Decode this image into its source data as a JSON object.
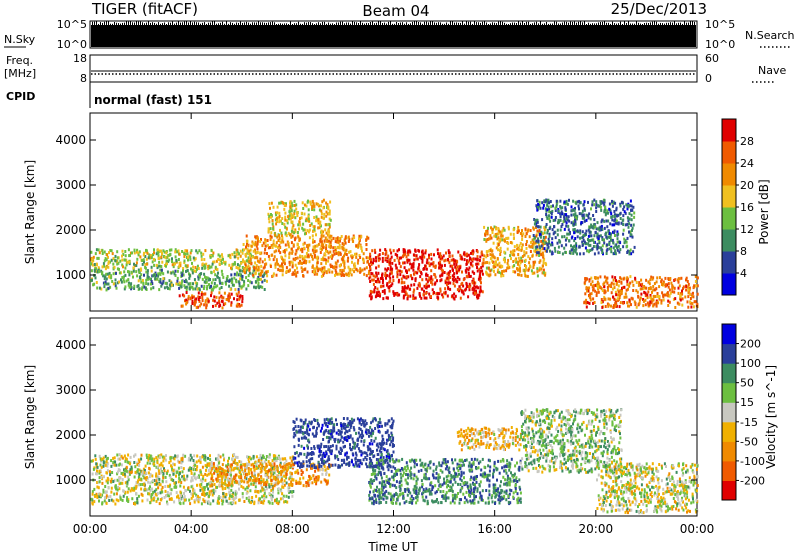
{
  "header": {
    "radar": "TIGER (fitACF)",
    "beam": "Beam 04",
    "date": "25/Dec/2013"
  },
  "strips": {
    "nsky_label": "N.Sky",
    "nsky_ticks": [
      "10^5",
      "10^0"
    ],
    "nsearch_label": "N.Search",
    "nsearch_ticks": [
      "10^5",
      "10^0"
    ],
    "freq_label_line1": "Freq.",
    "freq_label_line2": "[MHz]",
    "freq_ticks": [
      "18",
      "8"
    ],
    "nave_label": "Nave",
    "nave_ticks": [
      "60",
      "0"
    ],
    "cpid_label": "CPID",
    "cpid_text": "normal (fast) 151"
  },
  "colors": {
    "power": [
      "#0000e0",
      "#2a3f9a",
      "#3c8c60",
      "#6cbf40",
      "#f0c020",
      "#f08a00",
      "#f05a00",
      "#e00000"
    ],
    "velocity": [
      "#e00000",
      "#f05a00",
      "#f08a00",
      "#f0b000",
      "#c8c8c0",
      "#6cbf40",
      "#3c8c60",
      "#2a3f9a",
      "#0000e0"
    ]
  },
  "chart_data": [
    {
      "type": "heatmap",
      "title": "",
      "xlabel": "Time UT",
      "ylabel": "Slant Range [km]",
      "x_ticks": [
        "00:00",
        "04:00",
        "08:00",
        "12:00",
        "16:00",
        "20:00",
        "00:00"
      ],
      "x_range_hours": [
        0,
        24
      ],
      "y_ticks": [
        1000,
        2000,
        3000,
        4000
      ],
      "ylim": [
        200,
        4600
      ],
      "colorbar": {
        "label": "Power [dB]",
        "ticks": [
          "4",
          "8",
          "12",
          "16",
          "20",
          "24",
          "28"
        ]
      },
      "regions": [
        {
          "t": [
            0.0,
            6.5
          ],
          "r": [
            1150,
            1600
          ],
          "level": 16
        },
        {
          "t": [
            0.0,
            7.0
          ],
          "r": [
            700,
            1150
          ],
          "level": 12
        },
        {
          "t": [
            3.5,
            6.0
          ],
          "r": [
            300,
            650
          ],
          "level": 27
        },
        {
          "t": [
            6.0,
            11.0
          ],
          "r": [
            1000,
            1900
          ],
          "level": 22
        },
        {
          "t": [
            7.0,
            9.5
          ],
          "r": [
            1900,
            2700
          ],
          "level": 18
        },
        {
          "t": [
            11.0,
            15.5
          ],
          "r": [
            500,
            1600
          ],
          "level": 30
        },
        {
          "t": [
            15.5,
            18.0
          ],
          "r": [
            1000,
            2100
          ],
          "level": 20
        },
        {
          "t": [
            17.5,
            21.5
          ],
          "r": [
            1500,
            2700
          ],
          "level": 8
        },
        {
          "t": [
            19.5,
            24.0
          ],
          "r": [
            300,
            1000
          ],
          "level": 24
        }
      ]
    },
    {
      "type": "heatmap",
      "title": "",
      "xlabel": "Time UT",
      "ylabel": "Slant Range [km]",
      "x_ticks": [
        "00:00",
        "04:00",
        "08:00",
        "12:00",
        "16:00",
        "20:00",
        "00:00"
      ],
      "x_range_hours": [
        0,
        24
      ],
      "y_ticks": [
        1000,
        2000,
        3000,
        4000
      ],
      "ylim": [
        200,
        4600
      ],
      "colorbar": {
        "label": "Velocity [m s^-1]",
        "ticks": [
          "200",
          "100",
          "50",
          "15",
          "-15",
          "-50",
          "-100",
          "-200"
        ]
      },
      "regions": [
        {
          "t": [
            0.0,
            8.0
          ],
          "r": [
            500,
            1600
          ],
          "level": 0
        },
        {
          "t": [
            4.5,
            9.5
          ],
          "r": [
            900,
            1400
          ],
          "level": -60
        },
        {
          "t": [
            8.0,
            12.0
          ],
          "r": [
            1300,
            2400
          ],
          "level": 150
        },
        {
          "t": [
            11.0,
            17.0
          ],
          "r": [
            500,
            1500
          ],
          "level": 80
        },
        {
          "t": [
            14.5,
            17.0
          ],
          "r": [
            1700,
            2200
          ],
          "level": -40
        },
        {
          "t": [
            17.0,
            21.0
          ],
          "r": [
            1200,
            2600
          ],
          "level": 30
        },
        {
          "t": [
            20.0,
            24.0
          ],
          "r": [
            300,
            1400
          ],
          "level": 0
        }
      ]
    }
  ]
}
